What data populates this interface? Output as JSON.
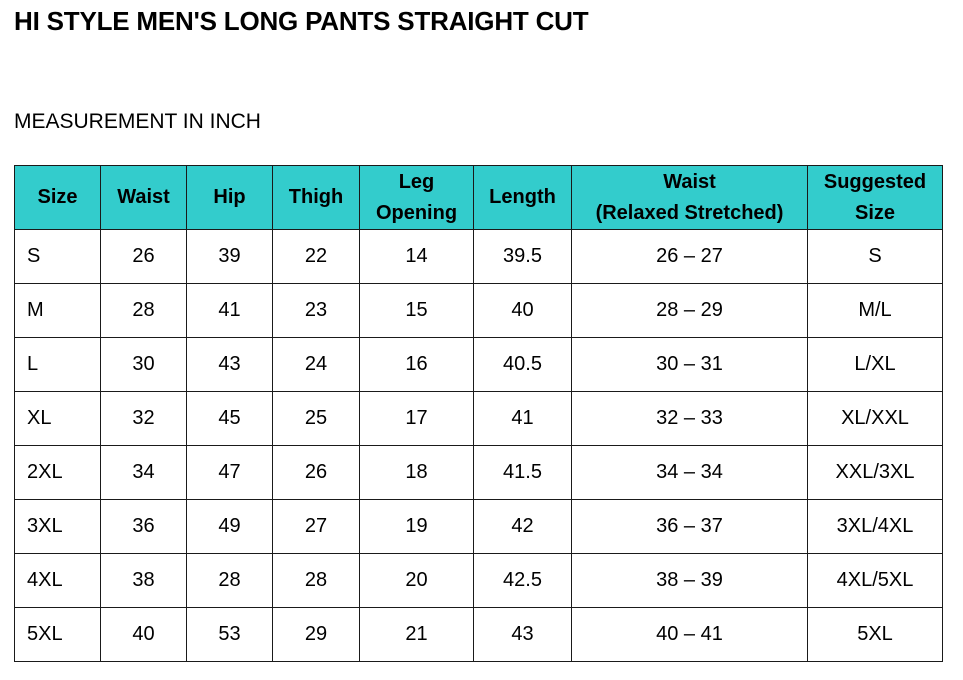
{
  "title": "HI STYLE MEN'S LONG PANTS STRAIGHT CUT",
  "subtitle": "MEASUREMENT IN INCH",
  "table": {
    "headers": [
      [
        "Size"
      ],
      [
        "Waist"
      ],
      [
        "Hip"
      ],
      [
        "Thigh"
      ],
      [
        "Leg",
        "Opening"
      ],
      [
        "Length"
      ],
      [
        "Waist",
        "(Relaxed Stretched)"
      ],
      [
        "Suggested",
        "Size"
      ]
    ],
    "rows": [
      [
        "S",
        "26",
        "39",
        "22",
        "14",
        "39.5",
        "26 – 27",
        "S"
      ],
      [
        "M",
        "28",
        "41",
        "23",
        "15",
        "40",
        "28 – 29",
        "M/L"
      ],
      [
        "L",
        "30",
        "43",
        "24",
        "16",
        "40.5",
        "30 – 31",
        "L/XL"
      ],
      [
        "XL",
        "32",
        "45",
        "25",
        "17",
        "41",
        "32 – 33",
        "XL/XXL"
      ],
      [
        "2XL",
        "34",
        "47",
        "26",
        "18",
        "41.5",
        "34 – 34",
        "XXL/3XL"
      ],
      [
        "3XL",
        "36",
        "49",
        "27",
        "19",
        "42",
        "36 – 37",
        "3XL/4XL"
      ],
      [
        "4XL",
        "38",
        "28",
        "28",
        "20",
        "42.5",
        "38 – 39",
        "4XL/5XL"
      ],
      [
        "5XL",
        "40",
        "53",
        "29",
        "21",
        "43",
        "40 – 41",
        "5XL"
      ]
    ]
  },
  "colors": {
    "header_background": "#33cccc",
    "border": "#1a1a1a",
    "text": "#000000"
  }
}
